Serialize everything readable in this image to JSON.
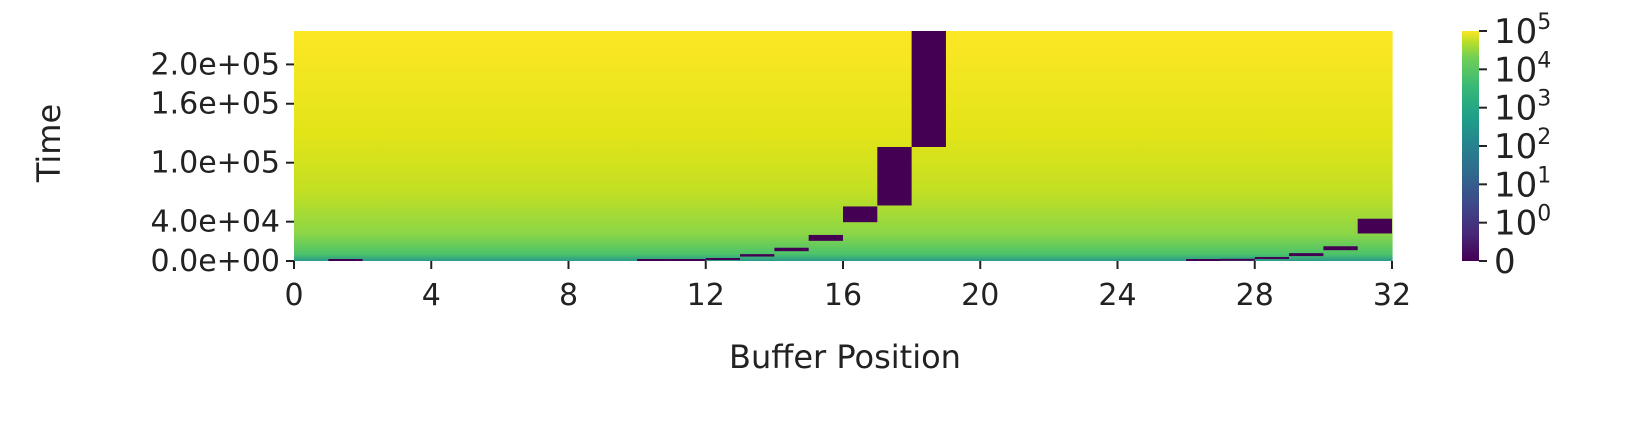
{
  "chart_data": {
    "type": "heatmap",
    "title": "",
    "xlabel": "Buffer Position",
    "ylabel": "Time",
    "x_range": [
      0,
      32
    ],
    "y_range": [
      0,
      234000
    ],
    "x_ticks": [
      0,
      4,
      8,
      12,
      16,
      20,
      24,
      28,
      32
    ],
    "y_ticks": [
      0,
      40000,
      100000,
      160000,
      200000
    ],
    "y_tick_labels": [
      "0.0e+00",
      "4.0e+04",
      "1.0e+05",
      "1.6e+05",
      "2.0e+05"
    ],
    "colormap": "viridis",
    "colorbar": {
      "scale": "symlog",
      "ticks": [
        {
          "base": "0",
          "exp": "",
          "value": 0
        },
        {
          "base": "10",
          "exp": "0",
          "value": 1
        },
        {
          "base": "10",
          "exp": "1",
          "value": 10
        },
        {
          "base": "10",
          "exp": "2",
          "value": 100
        },
        {
          "base": "10",
          "exp": "3",
          "value": 1000
        },
        {
          "base": "10",
          "exp": "4",
          "value": 10000
        },
        {
          "base": "10",
          "exp": "5",
          "value": 100000
        }
      ]
    },
    "zero_regions": [
      {
        "col": 1,
        "y_start": 0,
        "y_end": 500
      },
      {
        "col": 10,
        "y_start": 0,
        "y_end": 800
      },
      {
        "col": 11,
        "y_start": 0,
        "y_end": 1200
      },
      {
        "col": 12,
        "y_start": 1000,
        "y_end": 2500
      },
      {
        "col": 13,
        "y_start": 4500,
        "y_end": 7000
      },
      {
        "col": 14,
        "y_start": 10000,
        "y_end": 13500
      },
      {
        "col": 15,
        "y_start": 20500,
        "y_end": 26500
      },
      {
        "col": 16,
        "y_start": 39500,
        "y_end": 55500
      },
      {
        "col": 17,
        "y_start": 56500,
        "y_end": 116000
      },
      {
        "col": 18,
        "y_start": 116000,
        "y_end": 234000
      },
      {
        "col": 26,
        "y_start": 0,
        "y_end": 800
      },
      {
        "col": 27,
        "y_start": 200,
        "y_end": 1800
      },
      {
        "col": 28,
        "y_start": 2000,
        "y_end": 4000
      },
      {
        "col": 29,
        "y_start": 5000,
        "y_end": 8000
      },
      {
        "col": 30,
        "y_start": 11000,
        "y_end": 15000
      },
      {
        "col": 31,
        "y_start": 28000,
        "y_end": 43000
      }
    ]
  }
}
